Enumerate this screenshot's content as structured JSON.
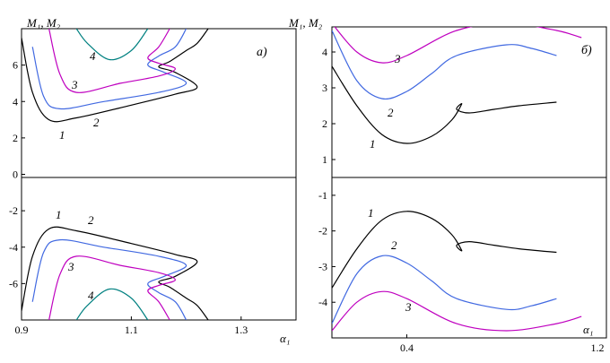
{
  "chart_data": [
    {
      "panel": "a",
      "type": "line",
      "panel_label": "а)",
      "ylabel": "M₁, M₂",
      "xlabel": "α₁",
      "xlim": [
        0.9,
        1.4
      ],
      "ylim": [
        -8,
        8
      ],
      "x_ticks": [
        "0.9",
        "1.1",
        "1.3"
      ],
      "y_ticks": [
        "6",
        "4",
        "2",
        "0",
        "-2",
        "-4",
        "-6"
      ],
      "grid": false,
      "series": [
        {
          "name": "1",
          "color": "#000000",
          "x": [
            0.9,
            0.92,
            0.95,
            1.0,
            1.1,
            1.18,
            1.22,
            1.18,
            1.15,
            1.17,
            1.2,
            1.22,
            1.24
          ],
          "y": [
            7.5,
            4.5,
            3.0,
            3.1,
            3.8,
            4.4,
            4.8,
            5.6,
            5.9,
            6.2,
            6.8,
            7.2,
            8.0
          ]
        },
        {
          "name": "2",
          "color": "#4169e1",
          "x": [
            0.92,
            0.94,
            0.97,
            1.05,
            1.15,
            1.2,
            1.16,
            1.13,
            1.15,
            1.18,
            1.2
          ],
          "y": [
            7.0,
            4.3,
            3.6,
            4.0,
            4.5,
            5.0,
            5.6,
            6.0,
            6.5,
            7.0,
            8.0
          ]
        },
        {
          "name": "3",
          "color": "#bf00bf",
          "x": [
            0.95,
            0.97,
            1.0,
            1.08,
            1.15,
            1.18,
            1.15,
            1.13,
            1.15,
            1.17
          ],
          "y": [
            8.0,
            5.5,
            4.5,
            5.0,
            5.4,
            5.8,
            6.1,
            6.4,
            7.0,
            8.0
          ]
        },
        {
          "name": "4",
          "color": "#008080",
          "x": [
            1.0,
            1.02,
            1.06,
            1.1,
            1.13
          ],
          "y": [
            8.0,
            7.2,
            6.3,
            6.8,
            8.0
          ]
        }
      ],
      "series_lower": [
        {
          "name": "1",
          "color": "#000000",
          "x": [
            0.9,
            0.92,
            0.95,
            1.0,
            1.1,
            1.18,
            1.22,
            1.18,
            1.15,
            1.17,
            1.2,
            1.22,
            1.24
          ],
          "y": [
            -7.5,
            -4.5,
            -3.0,
            -3.1,
            -3.8,
            -4.4,
            -4.8,
            -5.6,
            -5.9,
            -6.2,
            -6.8,
            -7.2,
            -8.0
          ]
        },
        {
          "name": "2",
          "color": "#4169e1",
          "x": [
            0.92,
            0.94,
            0.97,
            1.05,
            1.15,
            1.2,
            1.16,
            1.13,
            1.15,
            1.18,
            1.2
          ],
          "y": [
            -7.0,
            -4.3,
            -3.6,
            -4.0,
            -4.5,
            -5.0,
            -5.6,
            -6.0,
            -6.5,
            -7.0,
            -8.0
          ]
        },
        {
          "name": "3",
          "color": "#bf00bf",
          "x": [
            0.95,
            0.97,
            1.0,
            1.08,
            1.15,
            1.18,
            1.15,
            1.13,
            1.15,
            1.17
          ],
          "y": [
            -8.0,
            -5.5,
            -4.5,
            -5.0,
            -5.4,
            -5.8,
            -6.1,
            -6.4,
            -7.0,
            -8.0
          ]
        },
        {
          "name": "4",
          "color": "#008080",
          "x": [
            1.0,
            1.02,
            1.06,
            1.1,
            1.13
          ],
          "y": [
            -8.0,
            -7.2,
            -6.3,
            -6.8,
            -8.0
          ]
        }
      ]
    },
    {
      "panel": "b",
      "type": "line",
      "panel_label": "б)",
      "ylabel": "M₁, M₂",
      "xlabel": "α₁",
      "xlim": [
        0.1,
        1.2
      ],
      "ylim_upper": [
        0.5,
        4.7
      ],
      "ylim_lower": [
        -5.0,
        -0.5
      ],
      "x_ticks": [
        "0.4",
        "1.2"
      ],
      "y_ticks_upper": [
        "4",
        "3",
        "2",
        "1"
      ],
      "y_ticks_lower": [
        "-1",
        "-2",
        "-3",
        "-4"
      ],
      "grid": false,
      "series": [
        {
          "name": "1",
          "color": "#000000",
          "x": [
            0.1,
            0.2,
            0.3,
            0.4,
            0.5,
            0.58,
            0.62,
            0.6,
            0.65,
            0.75,
            0.85,
            1.0
          ],
          "y": [
            3.6,
            2.5,
            1.7,
            1.45,
            1.65,
            2.1,
            2.55,
            2.4,
            2.3,
            2.4,
            2.5,
            2.6
          ]
        },
        {
          "name": "2",
          "color": "#4169e1",
          "x": [
            0.1,
            0.2,
            0.3,
            0.4,
            0.5,
            0.6,
            0.8,
            0.9,
            1.0
          ],
          "y": [
            4.6,
            3.2,
            2.7,
            2.9,
            3.4,
            3.9,
            4.2,
            4.1,
            3.9
          ]
        },
        {
          "name": "3",
          "color": "#bf00bf",
          "x": [
            0.1,
            0.2,
            0.3,
            0.4,
            0.6,
            0.8,
            1.0,
            1.1
          ],
          "y": [
            4.8,
            4.0,
            3.7,
            3.9,
            4.6,
            4.8,
            4.6,
            4.4
          ]
        }
      ],
      "series_lower": [
        {
          "name": "1",
          "color": "#000000",
          "x": [
            0.1,
            0.2,
            0.3,
            0.4,
            0.5,
            0.58,
            0.62,
            0.6,
            0.65,
            0.75,
            0.85,
            1.0
          ],
          "y": [
            -3.6,
            -2.5,
            -1.7,
            -1.45,
            -1.65,
            -2.1,
            -2.55,
            -2.4,
            -2.3,
            -2.4,
            -2.5,
            -2.6
          ]
        },
        {
          "name": "2",
          "color": "#4169e1",
          "x": [
            0.1,
            0.2,
            0.3,
            0.4,
            0.5,
            0.6,
            0.8,
            0.9,
            1.0
          ],
          "y": [
            -4.6,
            -3.2,
            -2.7,
            -2.9,
            -3.4,
            -3.9,
            -4.2,
            -4.1,
            -3.9
          ]
        },
        {
          "name": "3",
          "color": "#bf00bf",
          "x": [
            0.1,
            0.2,
            0.3,
            0.4,
            0.6,
            0.8,
            1.0,
            1.1
          ],
          "y": [
            -4.8,
            -4.0,
            -3.7,
            -3.9,
            -4.6,
            -4.8,
            -4.6,
            -4.4
          ]
        }
      ]
    }
  ]
}
